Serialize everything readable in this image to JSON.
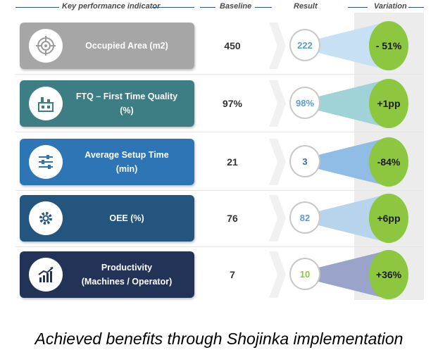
{
  "header": {
    "kpi": "Key performance indicator",
    "baseline": "Baseline",
    "result": "Result",
    "variation": "Variation"
  },
  "rows": [
    {
      "label_line1": "Occupied Area (m2)",
      "label_line2": "",
      "icon": "target-icon",
      "baseline": "450",
      "result": "222",
      "variation": "- 51%",
      "box_color": "#a6a6a6",
      "result_color": "#5b9bd5",
      "funnel_color": "#c7e0f4"
    },
    {
      "label_line1": "FTQ – First Time Quality",
      "label_line2": "(%)",
      "icon": "factory-icon",
      "baseline": "97%",
      "result": "98%",
      "variation": "+1pp",
      "box_color": "#3d7d84",
      "result_color": "#5b9bd5",
      "funnel_color": "#9fd3d8"
    },
    {
      "label_line1": "Average Setup Time",
      "label_line2": "(min)",
      "icon": "sliders-icon",
      "baseline": "21",
      "result": "3",
      "variation": "-84%",
      "box_color": "#2e75b6",
      "result_color": "#2e75b6",
      "funnel_color": "#8fbde6"
    },
    {
      "label_line1": "OEE (%)",
      "label_line2": "",
      "icon": "gears-icon",
      "baseline": "76",
      "result": "82",
      "variation": "+6pp",
      "box_color": "#24557f",
      "result_color": "#5b9bd5",
      "funnel_color": "#b7d4ec"
    },
    {
      "label_line1": "Productivity",
      "label_line2": "(Machines / Operator)",
      "icon": "growth-chart-icon",
      "baseline": "7",
      "result": "10",
      "variation": "+36%",
      "box_color": "#223357",
      "result_color": "#8dc63f",
      "funnel_color": "#9aa3c9"
    }
  ],
  "caption": "Achieved benefits through Shojinka implementation"
}
